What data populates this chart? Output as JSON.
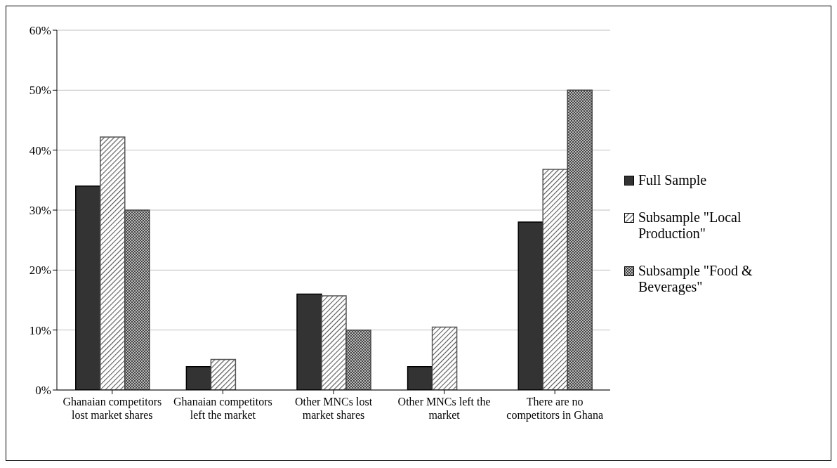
{
  "chart_data": {
    "type": "bar",
    "categories": [
      "Ghanaian competitors lost market shares",
      "Ghanaian competitors left the market",
      "Other MNCs lost market shares",
      "Other MNCs left the market",
      "There are no competitors in Ghana"
    ],
    "series": [
      {
        "name": "Full Sample",
        "color": "#333333",
        "values": [
          34.0,
          3.9,
          16.0,
          3.9,
          28.0
        ]
      },
      {
        "name": "Subsample \"Local Production\"",
        "color": "#555555",
        "values": [
          42.2,
          5.1,
          15.7,
          10.5,
          36.8
        ]
      },
      {
        "name": "Subsample \"Food & Beverages\"",
        "color": "#444444",
        "values": [
          30,
          0,
          10,
          0,
          50
        ]
      }
    ],
    "ylim": [
      0,
      60
    ],
    "yticks": [
      {
        "value": 0,
        "label": "0%"
      },
      {
        "value": 10,
        "label": "10%"
      },
      {
        "value": 20,
        "label": "20%"
      },
      {
        "value": 30,
        "label": "30%"
      },
      {
        "value": 40,
        "label": "40%"
      },
      {
        "value": 50,
        "label": "50%"
      },
      {
        "value": 60,
        "label": "60%"
      }
    ],
    "grid": "y",
    "legend": "right"
  }
}
